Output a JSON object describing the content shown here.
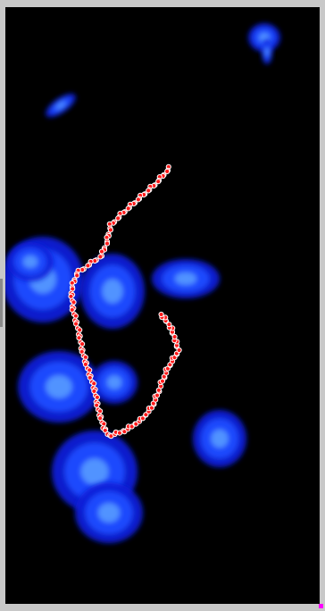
{
  "viewer": {
    "colors": {
      "frame": "#c8c8c8",
      "background": "#000000",
      "blob_core": "#5aa0ff",
      "blob_mid": "#1f4dff",
      "blob_edge": "#0a1fd8",
      "track": "#ff1a1a",
      "track_outline": "#ffffff",
      "corner_marker": "#ff00ff"
    },
    "icons": {
      "left_handle": "splitter-handle",
      "corner_marker": "resize-marker"
    }
  }
}
